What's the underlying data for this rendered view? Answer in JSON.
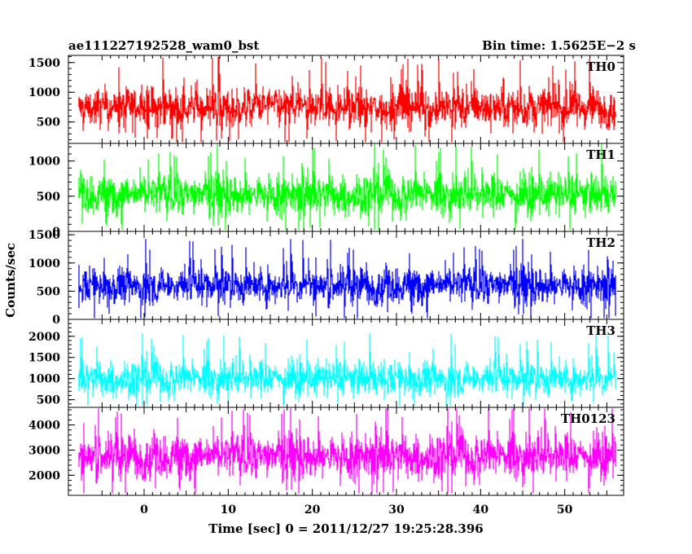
{
  "header": {
    "title": "ae111227192528_wam0_bst",
    "bin_time": "Bin time: 1.5625E−2 s"
  },
  "chart_data": {
    "type": "line",
    "xlabel": "Time [sec] 0 = 2011/12/27 19:25:28.396",
    "ylabel": "Counts/sec",
    "xlim": [
      -9,
      57
    ],
    "x_ticks": [
      0,
      10,
      20,
      30,
      40,
      50
    ],
    "data_x_range": [
      -7.7,
      56
    ],
    "panels": [
      {
        "name": "TH0",
        "color": "#ff0000",
        "ylim": [
          140,
          1620
        ],
        "y_ticks": [
          500,
          1000,
          1500
        ],
        "mean": 750,
        "spread": 310,
        "min": 160,
        "max": 1600
      },
      {
        "name": "TH1",
        "color": "#00ff00",
        "ylim": [
          0,
          1250
        ],
        "y_ticks": [
          0,
          500,
          1000
        ],
        "mean": 520,
        "spread": 260,
        "min": 20,
        "max": 1240
      },
      {
        "name": "TH2",
        "color": "#0000ff",
        "ylim": [
          0,
          1560
        ],
        "y_ticks": [
          0,
          500,
          1000,
          1500
        ],
        "mean": 600,
        "spread": 300,
        "min": 20,
        "max": 1540
      },
      {
        "name": "TH3",
        "color": "#00ffff",
        "ylim": [
          320,
          2400
        ],
        "y_ticks": [
          500,
          1000,
          1500,
          2000
        ],
        "mean": 1000,
        "spread": 380,
        "min": 360,
        "max": 2380
      },
      {
        "name": "TH0123",
        "color": "#ff00ff",
        "ylim": [
          1200,
          4700
        ],
        "y_ticks": [
          2000,
          3000,
          4000
        ],
        "mean": 2750,
        "spread": 800,
        "min": 1280,
        "max": 4660
      }
    ]
  }
}
